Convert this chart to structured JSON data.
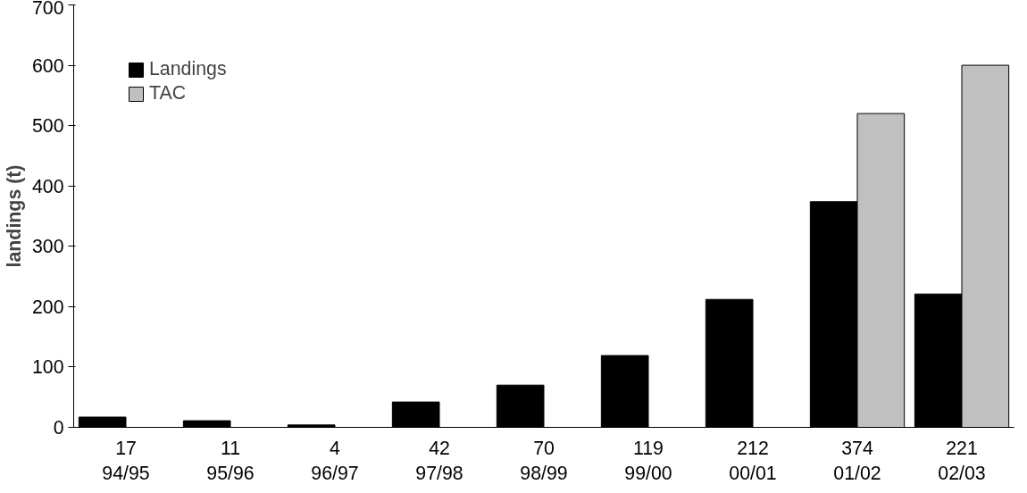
{
  "chart_data": {
    "type": "bar",
    "ylabel": "landings (t)",
    "categories": [
      "94/95",
      "95/96",
      "96/97",
      "97/98",
      "98/99",
      "99/00",
      "00/01",
      "01/02",
      "02/03"
    ],
    "series": [
      {
        "name": "Landings",
        "color": "#000000",
        "values": [
          17,
          11,
          4,
          42,
          70,
          119,
          212,
          374,
          221
        ],
        "value_labels": [
          "17",
          "11",
          "4",
          "42",
          "70",
          "119",
          "212",
          "374",
          "221"
        ]
      },
      {
        "name": "TAC",
        "color": "#c0c0c0",
        "values": [
          null,
          null,
          null,
          null,
          null,
          null,
          null,
          520,
          600
        ]
      }
    ],
    "ylim": [
      0,
      700
    ],
    "yticks": [
      0,
      100,
      200,
      300,
      400,
      500,
      600,
      700
    ],
    "grid": false,
    "legend": "top left"
  }
}
